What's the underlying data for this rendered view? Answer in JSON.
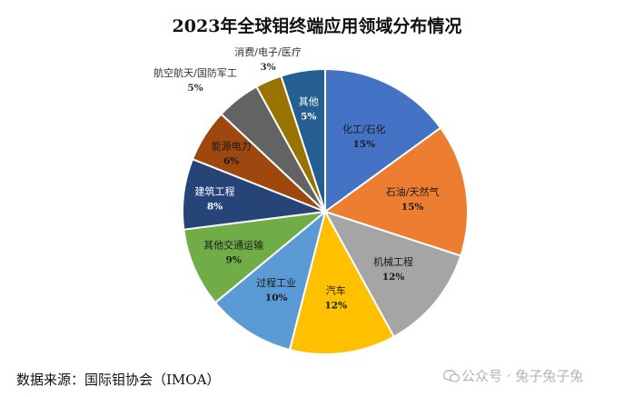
{
  "chart_data": {
    "type": "pie",
    "title": "2023年全球钼终端应用领域分布情况",
    "slices": [
      {
        "label": "化工/石化",
        "value": 15,
        "display": "15%",
        "color": "#4472C4"
      },
      {
        "label": "石油/天然气",
        "value": 15,
        "display": "15%",
        "color": "#ED7D31"
      },
      {
        "label": "机械工程",
        "value": 12,
        "display": "12%",
        "color": "#A5A5A5"
      },
      {
        "label": "汽车",
        "value": 12,
        "display": "12%",
        "color": "#FFC000"
      },
      {
        "label": "过程工业",
        "value": 10,
        "display": "10%",
        "color": "#5B9BD5"
      },
      {
        "label": "其他交通运输",
        "value": 9,
        "display": "9%",
        "color": "#70AD47"
      },
      {
        "label": "建筑工程",
        "value": 8,
        "display": "8%",
        "color": "#264478"
      },
      {
        "label": "能源电力",
        "value": 6,
        "display": "6%",
        "color": "#9E480E"
      },
      {
        "label": "航空航天/国防军工",
        "value": 5,
        "display": "5%",
        "color": "#636363"
      },
      {
        "label": "消费/电子/医疗",
        "value": 3,
        "display": "3%",
        "color": "#997300"
      },
      {
        "label": "其他",
        "value": 5,
        "display": "5%",
        "color": "#255E91"
      }
    ],
    "start_angle_deg": 0,
    "direction": "clockwise"
  },
  "footer": {
    "source": "数据来源：国际钼协会（IMOA）",
    "watermark": "公众号 · 兔子兔子兔"
  }
}
